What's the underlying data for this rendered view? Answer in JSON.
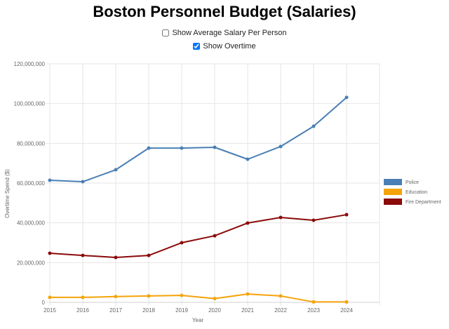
{
  "header": {
    "title": "Boston Personnel Budget (Salaries)"
  },
  "controls": {
    "avg_salary": {
      "label": "Show Average Salary Per Person",
      "checked": false
    },
    "overtime": {
      "label": "Show Overtime",
      "checked": true
    }
  },
  "chart_data": {
    "type": "line",
    "title": "Boston Personnel Budget (Salaries)",
    "xlabel": "Year",
    "ylabel": "Overtime Spend ($)",
    "x": [
      "2015",
      "2016",
      "2017",
      "2018",
      "2019",
      "2020",
      "2021",
      "2022",
      "2023",
      "2024"
    ],
    "ylim": [
      0,
      120000000
    ],
    "yticks": [
      0,
      20000000,
      40000000,
      60000000,
      80000000,
      100000000,
      120000000
    ],
    "ytick_labels": [
      "0",
      "20,000,000",
      "40,000,000",
      "60,000,000",
      "80,000,000",
      "100,000,000",
      "120,000,000"
    ],
    "grid": true,
    "legend_position": "right",
    "series": [
      {
        "name": "Police",
        "color": "#4a7fb5",
        "values": [
          61400000,
          60700000,
          66700000,
          77600000,
          77600000,
          78000000,
          72000000,
          78400000,
          88600000,
          103100000
        ]
      },
      {
        "name": "Education",
        "color": "#f5a30a",
        "values": [
          2500000,
          2500000,
          2900000,
          3200000,
          3500000,
          1900000,
          4200000,
          3200000,
          200000,
          200000
        ]
      },
      {
        "name": "Fire Department",
        "color": "#8b0a0a",
        "values": [
          24700000,
          23600000,
          22600000,
          23600000,
          30000000,
          33500000,
          39900000,
          42700000,
          41300000,
          44100000
        ]
      }
    ]
  }
}
